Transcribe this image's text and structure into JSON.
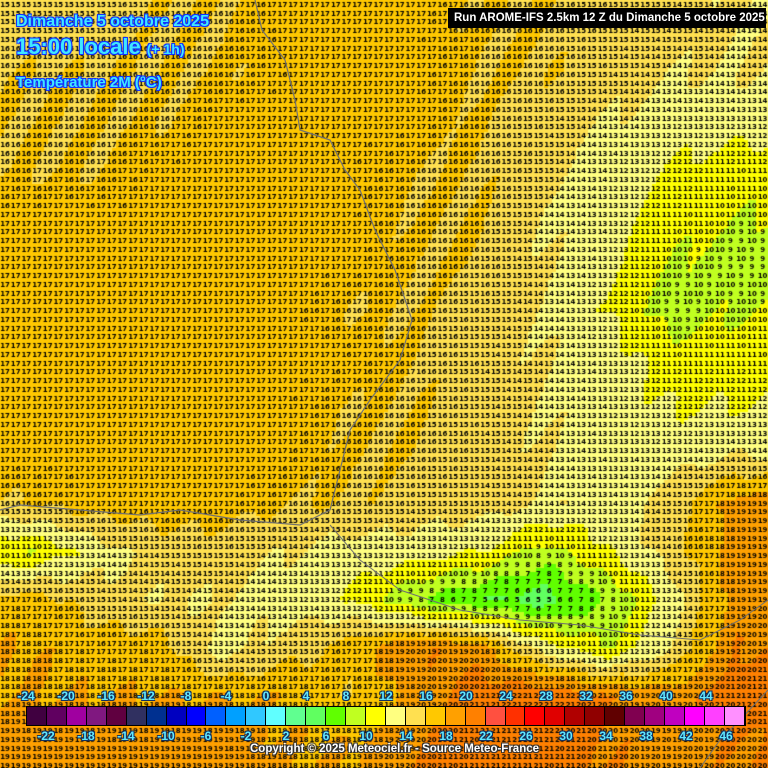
{
  "header": {
    "date": "Dimanche 5 octobre 2025",
    "time": "15:00 locale",
    "offset": "(+ 1h)",
    "variable": "Température 2M (°C)",
    "run": "Run AROME-IFS 2.5km 12 Z du Dimanche 5 octobre 2025"
  },
  "legend": {
    "top_labels": [
      "-24",
      "-20",
      "-16",
      "-12",
      "-8",
      "-4",
      "0",
      "4",
      "8",
      "12",
      "16",
      "20",
      "24",
      "28",
      "32",
      "36",
      "40",
      "44"
    ],
    "bottom_labels": [
      "-22",
      "-18",
      "-14",
      "-10",
      "-6",
      "-2",
      "2",
      "6",
      "10",
      "14",
      "18",
      "22",
      "26",
      "30",
      "34",
      "38",
      "42",
      "46"
    ],
    "colors": [
      "#400040",
      "#600060",
      "#a000a0",
      "#801880",
      "#600040",
      "#303060",
      "#003090",
      "#0000c0",
      "#0000ff",
      "#0060ff",
      "#00a0ff",
      "#30c8ff",
      "#60ffff",
      "#60ff90",
      "#60ff60",
      "#60ff00",
      "#c0ff20",
      "#ffff00",
      "#ffff80",
      "#ffe050",
      "#ffc800",
      "#ffa000",
      "#ff8000",
      "#ff5040",
      "#ff3000",
      "#ff0000",
      "#e00000",
      "#b00000",
      "#900000",
      "#600000",
      "#800050",
      "#a00080",
      "#c000c0",
      "#ff00ff",
      "#ff40ff",
      "#ff90ff"
    ],
    "min": -24,
    "step": 2
  },
  "copyright": "Copyright © 2025 Meteociel.fr - Source Meteo-France",
  "temperature_grid_coarse": [
    [
      15,
      15,
      16,
      16,
      17,
      17,
      17,
      16,
      16,
      15,
      15,
      14
    ],
    [
      16,
      16,
      16,
      16,
      17,
      17,
      17,
      16,
      16,
      15,
      14,
      14
    ],
    [
      16,
      16,
      16,
      17,
      17,
      17,
      17,
      16,
      15,
      14,
      13,
      13
    ],
    [
      16,
      16,
      17,
      17,
      17,
      17,
      16,
      16,
      15,
      13,
      12,
      11
    ],
    [
      17,
      17,
      17,
      17,
      17,
      17,
      16,
      16,
      14,
      13,
      11,
      10
    ],
    [
      17,
      17,
      17,
      17,
      17,
      17,
      16,
      16,
      14,
      13,
      10,
      9
    ],
    [
      17,
      17,
      17,
      17,
      17,
      16,
      16,
      15,
      14,
      12,
      9,
      10
    ],
    [
      17,
      17,
      17,
      17,
      17,
      17,
      16,
      15,
      14,
      13,
      11,
      11
    ],
    [
      17,
      17,
      17,
      17,
      17,
      16,
      16,
      15,
      14,
      13,
      12,
      12
    ],
    [
      17,
      17,
      17,
      17,
      17,
      16,
      16,
      15,
      14,
      13,
      13,
      14
    ],
    [
      16,
      17,
      17,
      17,
      16,
      16,
      15,
      15,
      14,
      13,
      15,
      19
    ],
    [
      10,
      13,
      15,
      15,
      14,
      13,
      13,
      12,
      9,
      12,
      15,
      19
    ],
    [
      17,
      15,
      14,
      14,
      13,
      12,
      8,
      6,
      5,
      8,
      13,
      19
    ],
    [
      18,
      17,
      17,
      13,
      15,
      17,
      20,
      19,
      13,
      10,
      14,
      20
    ],
    [
      18,
      18,
      18,
      18,
      18,
      16,
      19,
      21,
      22,
      20,
      19,
      21
    ],
    [
      19,
      19,
      19,
      19,
      18,
      18,
      20,
      21,
      21,
      20,
      19,
      20
    ]
  ]
}
